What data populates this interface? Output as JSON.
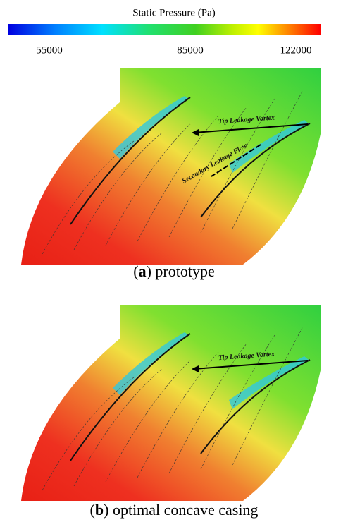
{
  "colorbar": {
    "title": "Static Pressure (Pa)",
    "ticks": [
      55000,
      85000,
      122000
    ]
  },
  "panels": [
    {
      "caption": [
        "(",
        "a",
        ") prototype"
      ],
      "annotations": [
        "Tip Leakage Vortex",
        "Secondary Leakage Flow"
      ]
    },
    {
      "caption": [
        "(",
        "b",
        ") optimal concave casing"
      ],
      "annotations": [
        "Tip Leakage Vortex"
      ]
    }
  ]
}
